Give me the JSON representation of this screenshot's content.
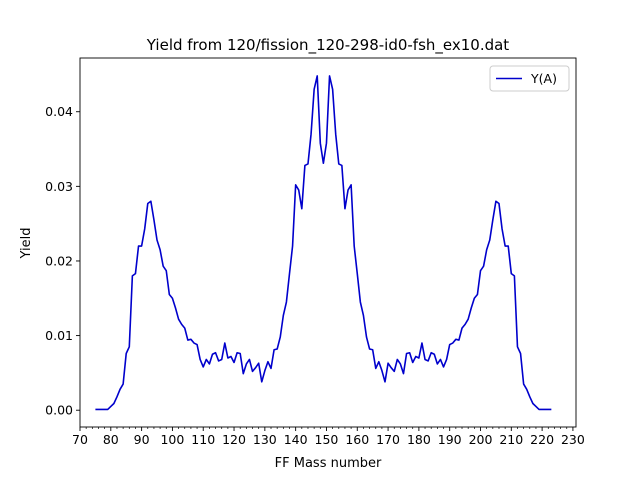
{
  "chart_data": {
    "type": "line",
    "title": "Yield from  120/fission_120-298-id0-fsh_ex10.dat",
    "xlabel": "FF Mass number",
    "ylabel": "Yield",
    "xlim": [
      70,
      231
    ],
    "ylim": [
      -0.00225,
      0.0472
    ],
    "xticks": [
      70,
      80,
      90,
      100,
      110,
      120,
      130,
      140,
      150,
      160,
      170,
      180,
      190,
      200,
      210,
      220,
      230
    ],
    "xminor_step": 2,
    "yticks": [
      0.0,
      0.01,
      0.02,
      0.03,
      0.04
    ],
    "ytick_labels": [
      "0.00",
      "0.01",
      "0.02",
      "0.03",
      "0.04"
    ],
    "grid": false,
    "legend_position": "top-right",
    "series": [
      {
        "name": "Y(A)",
        "color": "#0000cc",
        "x": [
          75,
          76,
          77,
          78,
          79,
          80,
          81,
          82,
          83,
          84,
          85,
          86,
          87,
          88,
          89,
          90,
          91,
          92,
          93,
          94,
          95,
          96,
          97,
          98,
          99,
          100,
          101,
          102,
          103,
          104,
          105,
          106,
          107,
          108,
          109,
          110,
          111,
          112,
          113,
          114,
          115,
          116,
          117,
          118,
          119,
          120,
          121,
          122,
          123,
          124,
          125,
          126,
          127,
          128,
          129,
          130,
          131,
          132,
          133,
          134,
          135,
          136,
          137,
          138,
          139,
          140,
          141,
          142,
          143,
          144,
          145,
          146,
          147,
          148,
          149,
          150,
          151,
          152,
          153,
          154,
          155,
          156,
          157,
          158,
          159,
          160,
          161,
          162,
          163,
          164,
          165,
          166,
          167,
          168,
          169,
          170,
          171,
          172,
          173,
          174,
          175,
          176,
          177,
          178,
          179,
          180,
          181,
          182,
          183,
          184,
          185,
          186,
          187,
          188,
          189,
          190,
          191,
          192,
          193,
          194,
          195,
          196,
          197,
          198,
          199,
          200,
          201,
          202,
          203,
          204,
          205,
          206,
          207,
          208,
          209,
          210,
          211,
          212,
          213,
          214,
          215,
          216,
          217,
          218,
          219,
          220,
          221,
          222,
          223
        ],
        "y": [
          0.0001,
          0.0001,
          0.0001,
          0.0001,
          0.0001,
          0.0005,
          0.0009,
          0.0018,
          0.0028,
          0.0035,
          0.0076,
          0.0085,
          0.018,
          0.0183,
          0.022,
          0.022,
          0.0243,
          0.0277,
          0.028,
          0.0255,
          0.0228,
          0.0215,
          0.0193,
          0.0187,
          0.0155,
          0.015,
          0.0137,
          0.0122,
          0.0115,
          0.011,
          0.0094,
          0.0095,
          0.009,
          0.0088,
          0.0068,
          0.0058,
          0.0068,
          0.0062,
          0.0075,
          0.0077,
          0.0066,
          0.0068,
          0.009,
          0.007,
          0.0072,
          0.0064,
          0.0077,
          0.0076,
          0.0049,
          0.0062,
          0.0068,
          0.0052,
          0.0057,
          0.0063,
          0.0038,
          0.0053,
          0.0065,
          0.0056,
          0.0081,
          0.0082,
          0.0098,
          0.0127,
          0.0145,
          0.0183,
          0.022,
          0.0302,
          0.0295,
          0.027,
          0.0328,
          0.033,
          0.037,
          0.043,
          0.0448,
          0.0358,
          0.0331,
          0.0358,
          0.0448,
          0.043,
          0.037,
          0.033,
          0.0328,
          0.027,
          0.0295,
          0.0302,
          0.022,
          0.0183,
          0.0145,
          0.0127,
          0.0098,
          0.0082,
          0.0081,
          0.0056,
          0.0065,
          0.0053,
          0.0038,
          0.0063,
          0.0057,
          0.0052,
          0.0068,
          0.0062,
          0.0049,
          0.0076,
          0.0077,
          0.0064,
          0.0072,
          0.007,
          0.009,
          0.0068,
          0.0066,
          0.0077,
          0.0075,
          0.0062,
          0.0068,
          0.0058,
          0.0068,
          0.0088,
          0.009,
          0.0095,
          0.0094,
          0.011,
          0.0115,
          0.0122,
          0.0137,
          0.015,
          0.0155,
          0.0187,
          0.0193,
          0.0215,
          0.0228,
          0.0255,
          0.028,
          0.0277,
          0.0243,
          0.022,
          0.022,
          0.0183,
          0.018,
          0.0085,
          0.0076,
          0.0035,
          0.0028,
          0.0018,
          0.0009,
          0.0005,
          0.0001,
          0.0001,
          0.0001,
          0.0001,
          0.0001
        ]
      }
    ]
  }
}
